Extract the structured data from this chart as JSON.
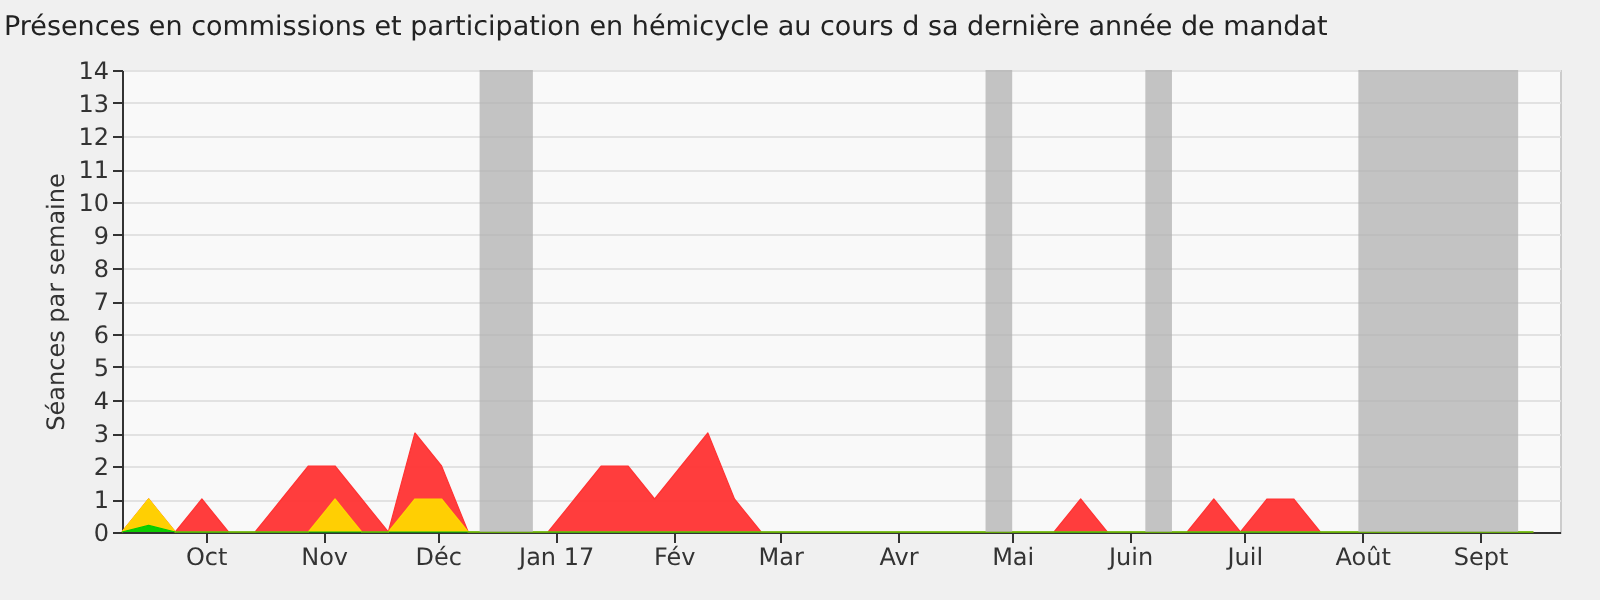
{
  "chart_data": {
    "type": "area",
    "title": "Présences en commissions et participation en hémicycle au cours d sa dernière année de mandat",
    "ylabel": "Séances par semaine",
    "x": [
      "2016-09-09",
      "2016-09-16",
      "2016-09-23",
      "2016-09-30",
      "2016-10-07",
      "2016-10-14",
      "2016-10-21",
      "2016-10-28",
      "2016-11-04",
      "2016-11-11",
      "2016-11-18",
      "2016-11-25",
      "2016-12-02",
      "2016-12-09",
      "2016-12-16",
      "2016-12-23",
      "2016-12-30",
      "2017-01-06",
      "2017-01-13",
      "2017-01-20",
      "2017-01-27",
      "2017-02-03",
      "2017-02-10",
      "2017-02-17",
      "2017-02-24",
      "2017-03-03",
      "2017-03-10",
      "2017-03-17",
      "2017-03-24",
      "2017-03-31",
      "2017-04-07",
      "2017-04-14",
      "2017-04-21",
      "2017-04-28",
      "2017-05-05",
      "2017-05-12",
      "2017-05-19",
      "2017-05-26",
      "2017-06-02",
      "2017-06-09",
      "2017-06-16",
      "2017-06-23",
      "2017-06-30",
      "2017-07-07",
      "2017-07-14",
      "2017-07-21",
      "2017-07-28",
      "2017-08-04",
      "2017-08-11",
      "2017-08-18",
      "2017-08-25",
      "2017-09-01",
      "2017-09-08",
      "2017-09-15"
    ],
    "series": [
      {
        "color": "#ff3333",
        "values": [
          0,
          1,
          0,
          1,
          0,
          0,
          1,
          2,
          2,
          1,
          0,
          3,
          2,
          0,
          0,
          0,
          0,
          1,
          2,
          2,
          1,
          2,
          3,
          1,
          0,
          0,
          0,
          0,
          0,
          0,
          0,
          0,
          0,
          0,
          0,
          0,
          1,
          0,
          0,
          0,
          0,
          1,
          0,
          1,
          1,
          0,
          0,
          0,
          0,
          0,
          0,
          0,
          0,
          0
        ]
      },
      {
        "color": "#ffd700",
        "values": [
          0,
          1,
          0,
          0,
          0,
          0,
          0,
          0,
          1,
          0,
          0,
          1,
          1,
          0,
          0,
          0,
          0,
          0,
          0,
          0,
          0,
          0,
          0,
          0,
          0,
          0,
          0,
          0,
          0,
          0,
          0,
          0,
          0,
          0,
          0,
          0,
          0,
          0,
          0,
          0,
          0,
          0,
          0,
          0,
          0,
          0,
          0,
          0,
          0,
          0,
          0,
          0,
          0,
          0
        ]
      },
      {
        "color": "#00cc00",
        "values": [
          0,
          0.2,
          0,
          0,
          0,
          0,
          0,
          0,
          0,
          0,
          0,
          0,
          0,
          0,
          0,
          0,
          0,
          0,
          0,
          0,
          0,
          0,
          0,
          0,
          0,
          0,
          0,
          0,
          0,
          0,
          0,
          0,
          0,
          0,
          0,
          0,
          0,
          0,
          0,
          0,
          0,
          0,
          0,
          0,
          0,
          0,
          0,
          0,
          0,
          0,
          0,
          0,
          0,
          0
        ]
      }
    ],
    "xlim": [
      "2016-09-09",
      "2017-09-22"
    ],
    "xticks": [
      {
        "value": "2016-10-01",
        "label": "Oct"
      },
      {
        "value": "2016-11-01",
        "label": "Nov"
      },
      {
        "value": "2016-12-01",
        "label": "Déc"
      },
      {
        "value": "2017-01-01",
        "label": "Jan 17"
      },
      {
        "value": "2017-02-01",
        "label": "Fév"
      },
      {
        "value": "2017-03-01",
        "label": "Mar"
      },
      {
        "value": "2017-04-01",
        "label": "Avr"
      },
      {
        "value": "2017-05-01",
        "label": "Mai"
      },
      {
        "value": "2017-06-01",
        "label": "Juin"
      },
      {
        "value": "2017-07-01",
        "label": "Juil"
      },
      {
        "value": "2017-08-01",
        "label": "Août"
      },
      {
        "value": "2017-09-01",
        "label": "Sept"
      }
    ],
    "ylim": [
      0,
      14
    ],
    "yticks": [
      0,
      1,
      2,
      3,
      4,
      5,
      6,
      7,
      8,
      9,
      10,
      11,
      12,
      13,
      14
    ],
    "bands": [
      {
        "axis": "x",
        "from": "2016-12-12",
        "to": "2016-12-26",
        "color": "#b0b0b0"
      },
      {
        "axis": "x",
        "from": "2017-04-24",
        "to": "2017-05-01",
        "color": "#b0b0b0"
      },
      {
        "axis": "x",
        "from": "2017-06-05",
        "to": "2017-06-12",
        "color": "#b0b0b0"
      },
      {
        "axis": "x",
        "from": "2017-07-31",
        "to": "2017-09-11",
        "color": "#b0b0b0"
      }
    ],
    "grid": "y"
  }
}
